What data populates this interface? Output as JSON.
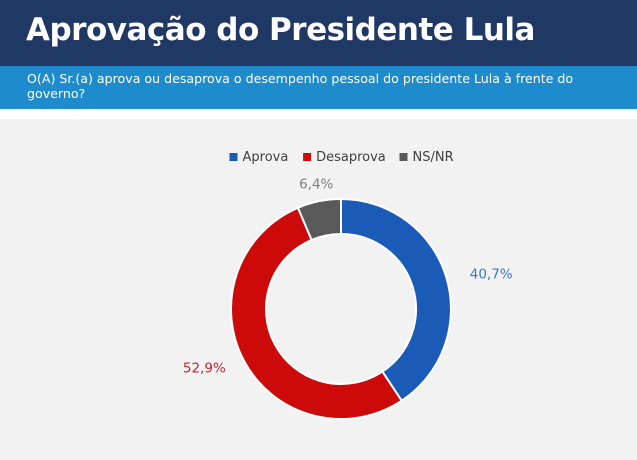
{
  "header": {
    "title": "Aprovação do Presidente Lula",
    "question": "O(A) Sr.(a) aprova ou desaprova o desempenho pessoal do presidente Lula à frente do governo?"
  },
  "colors": {
    "title_bg": "#1f3864",
    "subtitle_bg": "#1e8bcd",
    "chart_bg": "#f2f2f2"
  },
  "chart_data": {
    "type": "pie",
    "donut": true,
    "legend_position": "top-center",
    "series": [
      {
        "name": "Aprova",
        "value": 40.7,
        "label": "40,7%",
        "color": "#1a5bb8",
        "label_color": "#3b78c4"
      },
      {
        "name": "Desaprova",
        "value": 52.9,
        "label": "52,9%",
        "color": "#cc0a0a",
        "label_color": "#c8242e"
      },
      {
        "name": "NS/NR",
        "value": 6.4,
        "label": "6,4%",
        "color": "#595959",
        "label_color": "#808080"
      }
    ]
  }
}
